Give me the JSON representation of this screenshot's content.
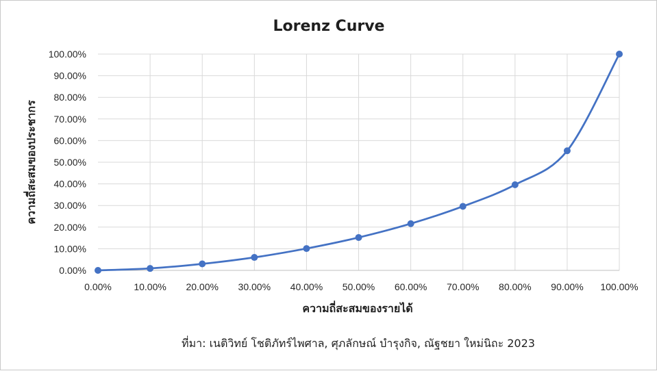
{
  "chart_data": {
    "type": "scatter",
    "title": "Lorenz Curve",
    "xlabel": "ความถี่สะสมของรายได้",
    "ylabel": "ความถี่สะสมของประชากร",
    "xlim": [
      0,
      100
    ],
    "ylim": [
      0,
      100
    ],
    "x_ticks": [
      "0.00%",
      "10.00%",
      "20.00%",
      "30.00%",
      "40.00%",
      "50.00%",
      "60.00%",
      "70.00%",
      "80.00%",
      "90.00%",
      "100.00%"
    ],
    "y_ticks": [
      "0.00%",
      "10.00%",
      "20.00%",
      "30.00%",
      "40.00%",
      "50.00%",
      "60.00%",
      "70.00%",
      "80.00%",
      "90.00%",
      "100.00%"
    ],
    "grid": true,
    "legend": "none",
    "smooth": true,
    "series": [
      {
        "color": "#4472c4",
        "points": [
          {
            "x": 0,
            "y": 0
          },
          {
            "x": 10,
            "y": 0.9
          },
          {
            "x": 20,
            "y": 3.0
          },
          {
            "x": 30,
            "y": 6.0
          },
          {
            "x": 40,
            "y": 10.1
          },
          {
            "x": 50,
            "y": 15.2
          },
          {
            "x": 60,
            "y": 21.6
          },
          {
            "x": 70,
            "y": 29.6
          },
          {
            "x": 80,
            "y": 39.6
          },
          {
            "x": 90,
            "y": 55.3
          },
          {
            "x": 100,
            "y": 100
          }
        ]
      }
    ]
  },
  "source": "ที่มา: เนติวิทย์ โชติภัทร์ไพศาล, ศุภลักษณ์ บำรุงกิจ, ณัฐชยา ใหม่นิถะ 2023"
}
